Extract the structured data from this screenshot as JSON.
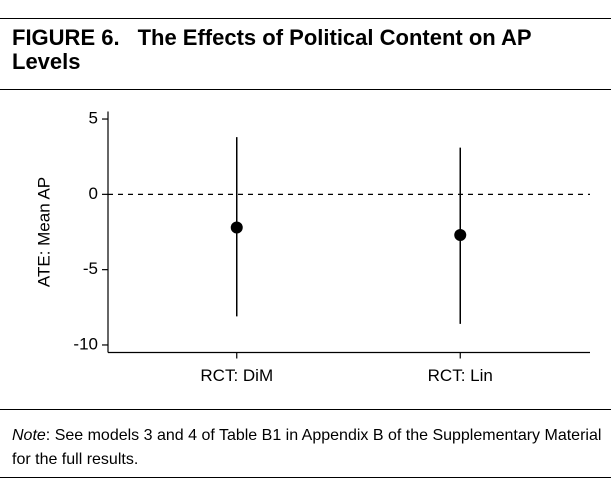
{
  "figure_label": "FIGURE 6.",
  "chart_data": {
    "type": "errorbar",
    "title": "The Effects of Political Content on AP Levels",
    "ylabel": "ATE: Mean AP",
    "categories": [
      "RCT: DiM",
      "RCT: Lin"
    ],
    "values": [
      -2.2,
      -2.7
    ],
    "lower": [
      -8.1,
      -8.6
    ],
    "upper": [
      3.8,
      3.1
    ],
    "color": "#000000",
    "ylim": [
      -10.5,
      5.5
    ],
    "yticks": [
      -10,
      -5,
      0,
      5
    ],
    "reference_line": 0
  },
  "note": {
    "label": "Note",
    "text": ": See models 3 and 4 of Table B1 in Appendix B of the Supplementary Material for the full results."
  }
}
